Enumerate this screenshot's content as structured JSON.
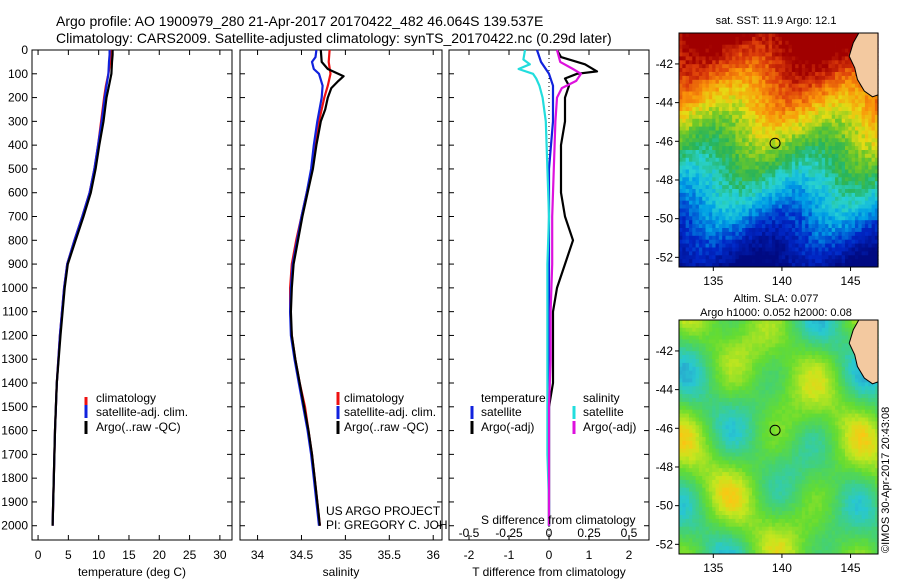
{
  "header": {
    "line1": "Argo profile: AO 1900979_280 21-Apr-2017 20170422_482 46.064S 139.537E",
    "line2": "Climatology: CARS2009. Satellite-adjusted climatology: synTS_20170422.nc (0.29d later)"
  },
  "colors": {
    "climatology": "#ee1111",
    "satellite": "#1122dd",
    "argo": "#000000",
    "sal_satellite": "#22dddd",
    "sal_argo": "#dd11dd"
  },
  "depth_ticks": [
    "0",
    "100",
    "200",
    "300",
    "400",
    "500",
    "600",
    "700",
    "800",
    "900",
    "1000",
    "1100",
    "1200",
    "1300",
    "1400",
    "1500",
    "1600",
    "1700",
    "1800",
    "1900",
    "2000"
  ],
  "chart_data": [
    {
      "type": "line",
      "name": "temperature",
      "xlabel": "temperature (deg C)",
      "xlim": [
        -1,
        32
      ],
      "ylim": [
        2060,
        0
      ],
      "xticks": [
        "0",
        "5",
        "10",
        "15",
        "20",
        "25",
        "30"
      ],
      "legend": {
        "placement": "lower-left",
        "entries": [
          "climatology",
          "satellite-adj. clim.",
          "Argo(..raw -QC)"
        ]
      },
      "series": [
        {
          "name": "climatology",
          "color_key": "climatology",
          "depth": [
            0,
            20,
            50,
            100,
            150,
            200,
            300,
            400,
            500,
            600,
            700,
            800,
            900,
            1000,
            1200,
            1400,
            1600,
            1800,
            2000
          ],
          "values": [
            12.1,
            12.0,
            11.9,
            11.6,
            11.2,
            10.9,
            10.4,
            9.9,
            9.3,
            8.5,
            7.3,
            6.0,
            4.8,
            4.3,
            3.6,
            3.1,
            2.8,
            2.6,
            2.4
          ]
        },
        {
          "name": "satellite-adj. clim.",
          "color_key": "satellite",
          "depth": [
            0,
            20,
            50,
            100,
            150,
            200,
            300,
            400,
            500,
            600,
            700,
            800,
            900,
            1000,
            1200,
            1400,
            1600,
            1800,
            2000
          ],
          "values": [
            11.8,
            11.8,
            11.7,
            11.6,
            11.3,
            11.0,
            10.5,
            9.9,
            9.3,
            8.5,
            7.3,
            6.0,
            4.8,
            4.3,
            3.6,
            3.1,
            2.8,
            2.6,
            2.4
          ]
        },
        {
          "name": "Argo(..raw -QC)",
          "color_key": "argo",
          "depth": [
            0,
            20,
            50,
            100,
            150,
            200,
            300,
            400,
            500,
            600,
            700,
            800,
            900,
            1000,
            1200,
            1400,
            1600,
            1800,
            2000
          ],
          "values": [
            12.3,
            12.3,
            12.2,
            12.1,
            11.7,
            11.3,
            10.8,
            10.1,
            9.5,
            8.7,
            7.5,
            6.2,
            4.9,
            4.4,
            3.7,
            3.1,
            2.8,
            2.6,
            2.4
          ]
        }
      ]
    },
    {
      "type": "line",
      "name": "salinity",
      "xlabel": "salinity",
      "xlim": [
        33.8,
        36.1
      ],
      "ylim": [
        2060,
        0
      ],
      "xticks": [
        "34",
        "34.5",
        "35",
        "35.5",
        "36"
      ],
      "legend": {
        "placement": "lower-left",
        "entries": [
          "climatology",
          "satellite-adj. clim.",
          "Argo(..raw -QC)"
        ]
      },
      "annotation": [
        "US ARGO PROJECT",
        "PI: GREGORY C. JOHNSON"
      ],
      "series": [
        {
          "name": "climatology",
          "color_key": "climatology",
          "depth": [
            0,
            50,
            100,
            150,
            200,
            300,
            400,
            500,
            600,
            700,
            800,
            900,
            1000,
            1100,
            1200,
            1300,
            1400,
            1500,
            1600,
            1700,
            1800,
            1900,
            2000
          ],
          "values": [
            34.82,
            34.81,
            34.83,
            34.8,
            34.76,
            34.7,
            34.66,
            34.62,
            34.56,
            34.5,
            34.44,
            34.39,
            34.37,
            34.37,
            34.39,
            34.43,
            34.48,
            34.54,
            34.58,
            34.62,
            34.65,
            34.68,
            34.71
          ]
        },
        {
          "name": "satellite-adj. clim.",
          "color_key": "satellite",
          "depth": [
            0,
            30,
            50,
            80,
            100,
            150,
            200,
            300,
            400,
            500,
            600,
            700,
            800,
            900,
            1000,
            1100,
            1200,
            1300,
            1400,
            1500,
            1600,
            1700,
            1800,
            1900,
            2000
          ],
          "values": [
            34.67,
            34.66,
            34.62,
            34.64,
            34.7,
            34.74,
            34.73,
            34.68,
            34.64,
            34.61,
            34.56,
            34.5,
            34.45,
            34.4,
            34.38,
            34.37,
            34.38,
            34.42,
            34.47,
            34.52,
            34.57,
            34.61,
            34.64,
            34.67,
            34.7
          ]
        },
        {
          "name": "Argo(..raw -QC)",
          "color_key": "argo",
          "depth": [
            0,
            50,
            80,
            110,
            130,
            160,
            200,
            250,
            300,
            400,
            500,
            600,
            700,
            800,
            900,
            1000,
            1100,
            1200,
            1300,
            1400,
            1500,
            1600,
            1700,
            1800,
            1900,
            2000
          ],
          "values": [
            34.72,
            34.73,
            34.8,
            34.98,
            34.92,
            34.84,
            34.8,
            34.77,
            34.72,
            34.67,
            34.63,
            34.57,
            34.51,
            34.46,
            34.41,
            34.39,
            34.38,
            34.39,
            34.43,
            34.48,
            34.53,
            34.58,
            34.62,
            34.65,
            34.68,
            34.71
          ]
        }
      ]
    },
    {
      "type": "line",
      "name": "differences",
      "xlabel": "T difference from climatology",
      "xlabel_top": "S difference from climatology",
      "xlim": [
        -2.5,
        2.5
      ],
      "ylim": [
        2060,
        0
      ],
      "xticks": [
        "-2",
        "-1",
        "0",
        "1",
        "2"
      ],
      "xticks_top": [
        "-0.5",
        "-0.25",
        "0",
        "0.25",
        "0.5"
      ],
      "legend": {
        "placement": "lower",
        "titles": [
          "temperature",
          "salinity"
        ],
        "entries": [
          "satellite",
          "Argo(-adj)",
          "satellite",
          "Argo(-adj)"
        ]
      },
      "series": [
        {
          "name": "satellite",
          "group": "temperature",
          "color_key": "satellite",
          "depth": [
            0,
            50,
            100,
            150,
            200,
            300,
            500,
            700,
            900,
            1100,
            1300,
            1500,
            1700,
            1900,
            2000
          ],
          "values": [
            -0.3,
            -0.2,
            0.0,
            0.1,
            0.1,
            0.1,
            0.0,
            0.0,
            0.0,
            0.0,
            0.0,
            0.0,
            0.0,
            0.0,
            0.0
          ]
        },
        {
          "name": "Argo(-adj)",
          "group": "temperature",
          "color_key": "argo",
          "depth": [
            0,
            30,
            60,
            90,
            100,
            120,
            150,
            200,
            300,
            400,
            500,
            600,
            700,
            800,
            900,
            1000,
            1100,
            1200,
            1300,
            1400,
            1500,
            1700,
            1900,
            2000
          ],
          "values": [
            0.2,
            0.3,
            0.9,
            1.2,
            0.7,
            0.4,
            0.5,
            0.4,
            0.4,
            0.3,
            0.3,
            0.3,
            0.4,
            0.6,
            0.4,
            0.2,
            0.1,
            0.1,
            0.1,
            0.1,
            0.0,
            0.0,
            0.0,
            0.0
          ]
        },
        {
          "name": "satellite",
          "group": "salinity",
          "color_key": "sal_satellite",
          "depth": [
            0,
            40,
            60,
            80,
            100,
            120,
            150,
            200,
            300,
            500,
            700,
            900,
            1100,
            1300,
            1500,
            1700,
            1900,
            2000
          ],
          "values": [
            -0.15,
            -0.16,
            -0.12,
            -0.19,
            -0.1,
            -0.08,
            -0.06,
            -0.04,
            -0.02,
            -0.01,
            0.0,
            -0.01,
            -0.01,
            -0.01,
            -0.01,
            -0.01,
            0.0,
            0.0
          ]
        },
        {
          "name": "Argo(-adj)",
          "group": "salinity",
          "color_key": "sal_argo",
          "depth": [
            0,
            50,
            80,
            100,
            130,
            160,
            200,
            300,
            500,
            700,
            900,
            1100,
            1300,
            1500,
            1700,
            1900,
            2000
          ],
          "values": [
            0.05,
            0.07,
            0.15,
            0.2,
            0.17,
            0.08,
            0.05,
            0.04,
            0.03,
            0.02,
            0.02,
            0.01,
            0.01,
            0.0,
            0.0,
            0.0,
            0.0
          ]
        }
      ]
    },
    {
      "type": "heatmap",
      "name": "sst_map",
      "title": "sat. SST: 11.9  Argo: 12.1",
      "xlim": [
        132.5,
        147
      ],
      "ylim": [
        -52.5,
        -40.4
      ],
      "xticks": [
        "135",
        "140",
        "145"
      ],
      "yticks": [
        "-42",
        "-44",
        "-46",
        "-48",
        "-50",
        "-52"
      ],
      "marker": {
        "lon": 139.5,
        "lat": -46.1
      }
    },
    {
      "type": "heatmap",
      "name": "sla_map",
      "title": "Altim. SLA: 0.077",
      "subtitle": "Argo h1000: 0.052 h2000: 0.08",
      "xlim": [
        132.5,
        147
      ],
      "ylim": [
        -52.5,
        -40.4
      ],
      "xticks": [
        "135",
        "140",
        "145"
      ],
      "yticks": [
        "-42",
        "-44",
        "-46",
        "-48",
        "-50",
        "-52"
      ],
      "marker": {
        "lon": 139.5,
        "lat": -46.1
      }
    }
  ],
  "credit": "©IMOS 30-Apr-2017 20:43:08"
}
